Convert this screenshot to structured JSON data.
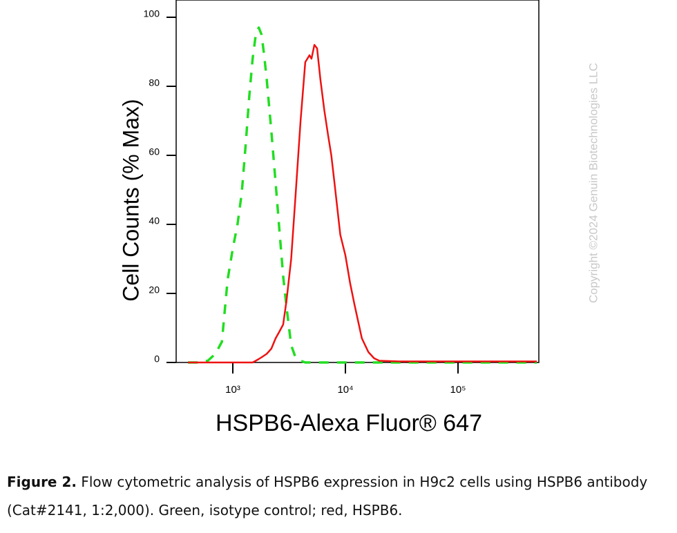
{
  "chart_data": {
    "type": "line",
    "y_label": "Cell Counts (% Max)",
    "x_label": "HSPB6-Alexa Fluor® 647",
    "watermark": "Copyright ©2024 Genuin Biotechnologies LLC",
    "log_x": true,
    "xlim": [
      314,
      522000
    ],
    "ylim": [
      0,
      105
    ],
    "xticks": [
      {
        "value": 1000,
        "label": "10³"
      },
      {
        "value": 10000,
        "label": "10⁴"
      },
      {
        "value": 100000,
        "label": "10⁵"
      }
    ],
    "yticks": [
      0,
      20,
      40,
      60,
      80,
      100
    ],
    "x": [
      400,
      500,
      600,
      700,
      800,
      900,
      1000,
      1100,
      1200,
      1300,
      1400,
      1500,
      1600,
      1700,
      1800,
      1900,
      2000,
      2200,
      2400,
      2600,
      2800,
      3000,
      3300,
      3600,
      4000,
      4400,
      4800,
      5000,
      5300,
      5600,
      6000,
      6500,
      7000,
      7500,
      8000,
      9000,
      10000,
      11000,
      12000,
      14000,
      16000,
      18000,
      20000,
      30000,
      50000,
      100000,
      200000,
      500000
    ],
    "series": [
      {
        "name": "Isotype control",
        "color": "#22dd22",
        "dashed": true,
        "values": [
          0,
          0,
          0.5,
          2.5,
          6,
          24,
          33,
          40,
          49,
          63,
          77,
          88,
          95,
          97,
          95,
          89,
          82,
          67,
          52,
          38,
          25,
          16,
          5,
          1.5,
          0.5,
          0,
          0,
          0,
          0,
          0,
          0,
          0,
          0,
          0,
          0,
          0,
          0,
          0,
          0,
          0,
          0,
          0,
          0,
          0,
          0,
          0,
          0,
          0
        ]
      },
      {
        "name": "HSPB6",
        "color": "#ee1111",
        "dashed": false,
        "values": [
          0,
          0,
          0,
          0,
          0,
          0,
          0,
          0,
          0,
          0,
          0,
          0,
          0.5,
          1,
          1.5,
          2,
          2.5,
          4,
          7,
          9,
          11,
          18,
          30,
          48,
          70,
          87,
          89,
          88,
          92,
          91,
          82,
          73,
          66,
          60,
          52,
          37,
          31,
          23,
          17,
          7,
          3,
          1.2,
          0.5,
          0.3,
          0.3,
          0.3,
          0.3,
          0.3
        ]
      }
    ]
  },
  "caption": {
    "label": "Figure 2.",
    "text": "Flow cytometric analysis of HSPB6 expression in H9c2 cells using HSPB6 antibody (Cat#2141, 1:2,000). Green, isotype control; red, HSPB6."
  }
}
